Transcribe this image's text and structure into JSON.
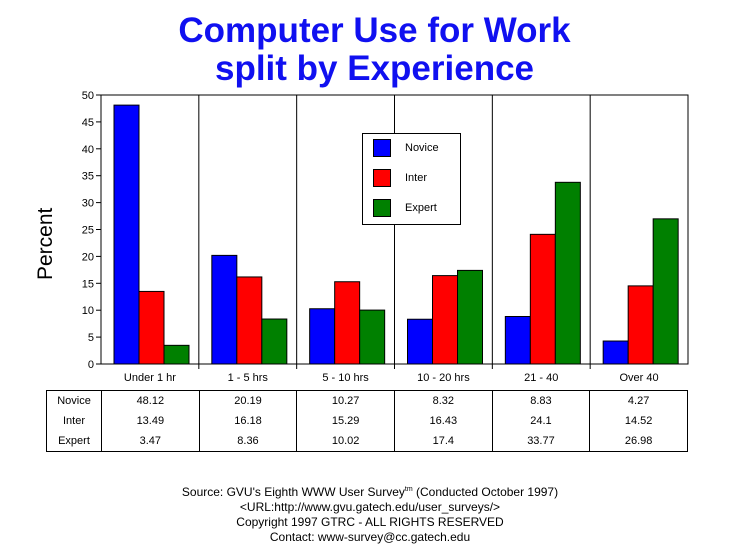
{
  "title_line1": "Computer Use for Work",
  "title_line2": "split by Experience",
  "colors": {
    "Novice": "#0000ff",
    "Inter": "#ff0000",
    "Expert": "#008000",
    "title": "#1010f0"
  },
  "chart_data": {
    "type": "bar",
    "ylabel": "Percent",
    "xlabel": "",
    "ylim": [
      0,
      50
    ],
    "yticks": [
      0,
      5,
      10,
      15,
      20,
      25,
      30,
      35,
      40,
      45,
      50
    ],
    "grid": "vertical-separators",
    "legend_position": "top-center",
    "categories": [
      "Under 1 hr",
      "1 - 5 hrs",
      "5 - 10 hrs",
      "10 - 20 hrs",
      "21 - 40",
      "Over 40"
    ],
    "series": [
      {
        "name": "Novice",
        "values": [
          48.12,
          20.19,
          10.27,
          8.32,
          8.83,
          4.27
        ]
      },
      {
        "name": "Inter",
        "values": [
          13.49,
          16.18,
          15.29,
          16.43,
          24.1,
          14.52
        ]
      },
      {
        "name": "Expert",
        "values": [
          3.47,
          8.36,
          10.02,
          17.4,
          33.77,
          26.98
        ]
      }
    ]
  },
  "table_rows": [
    {
      "label": "Novice",
      "values": [
        "48.12",
        "20.19",
        "10.27",
        "8.32",
        "8.83",
        "4.27"
      ]
    },
    {
      "label": "Inter",
      "values": [
        "13.49",
        "16.18",
        "15.29",
        "16.43",
        "24.1",
        "14.52"
      ]
    },
    {
      "label": "Expert",
      "values": [
        "3.47",
        "8.36",
        "10.02",
        "17.4",
        "33.77",
        "26.98"
      ]
    }
  ],
  "footer": {
    "source_prefix": "Source: GVU's Eighth WWW User Survey",
    "source_tm": "tm",
    "source_suffix": " (Conducted October 1997)",
    "url": "<URL:http://www.gvu.gatech.edu/user_surveys/>",
    "copyright": "Copyright 1997 GTRC - ALL RIGHTS RESERVED",
    "contact": "Contact: www-survey@cc.gatech.edu"
  }
}
